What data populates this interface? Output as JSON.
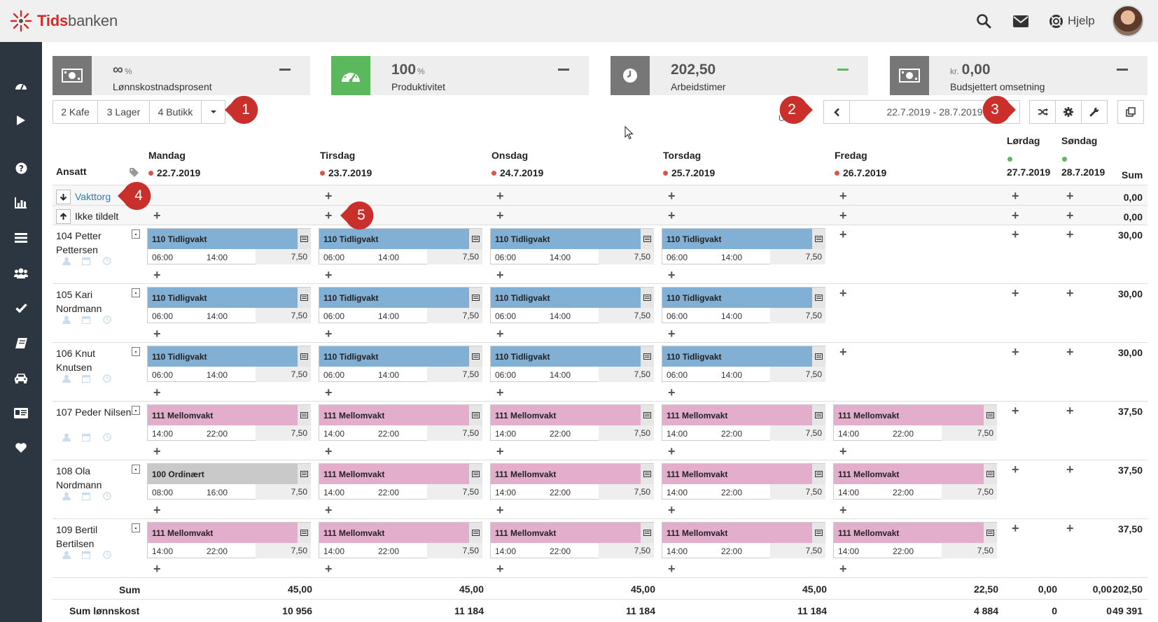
{
  "app": {
    "brand_a": "Tids",
    "brand_b": "banken"
  },
  "topbar": {
    "help_label": "Hjelp"
  },
  "sidebar": {
    "icons": [
      "dashboard-icon",
      "play-icon",
      "question-icon",
      "bar-chart-icon",
      "list-icon",
      "users-icon",
      "check-icon",
      "book-icon",
      "car-icon",
      "id-card-icon",
      "heart-icon"
    ]
  },
  "kpis": [
    {
      "value": "∞",
      "unit": "%",
      "prefix": "",
      "label": "Lønnskostnadsprosent",
      "icon": "money-icon",
      "icon_bg": "#777777",
      "dash_color": "#555555"
    },
    {
      "value": "100",
      "unit": "%",
      "prefix": "",
      "label": "Produktivitet",
      "icon": "speedometer-icon",
      "icon_bg": "#5cb85c",
      "dash_color": "#555555"
    },
    {
      "value": "202,50",
      "unit": "",
      "prefix": "",
      "label": "Arbeidstimer",
      "icon": "clock-icon",
      "icon_bg": "#777777",
      "dash_color": "#5cb85c"
    },
    {
      "value": "0,00",
      "unit": "",
      "prefix": "kr.",
      "label": "Budsjettert omsetning",
      "icon": "money-icon",
      "icon_bg": "#777777",
      "dash_color": "#555555"
    }
  ],
  "departments": [
    "2 Kafe",
    "3 Lager",
    "4 Butikk"
  ],
  "date_range": "22.7.2019 - 28.7.2019",
  "callouts": [
    "1",
    "2",
    "3",
    "4",
    "5"
  ],
  "header": {
    "employee_col": "Ansatt",
    "sum_col": "Sum",
    "fragment": "U"
  },
  "days": [
    {
      "name": "Mandag",
      "date": "22.7.2019",
      "dot": "#d9534f"
    },
    {
      "name": "Tirsdag",
      "date": "23.7.2019",
      "dot": "#d9534f"
    },
    {
      "name": "Onsdag",
      "date": "24.7.2019",
      "dot": "#d9534f"
    },
    {
      "name": "Torsdag",
      "date": "25.7.2019",
      "dot": "#d9534f"
    },
    {
      "name": "Fredag",
      "date": "26.7.2019",
      "dot": "#d9534f"
    },
    {
      "name": "Lørdag",
      "date": "27.7.2019",
      "dot": "#5cb85c"
    },
    {
      "name": "Søndag",
      "date": "28.7.2019",
      "dot": "#5cb85c"
    }
  ],
  "special_rows": [
    {
      "label": "Vakttorg",
      "sum": "0,00"
    },
    {
      "label": "Ikke tildelt",
      "sum": "0,00"
    }
  ],
  "employees": [
    {
      "name": "104 Petter Pettersen",
      "sum": "30,00",
      "shifts": [
        {
          "day": 0,
          "title": "110 Tidligvakt",
          "start": "06:00",
          "end": "14:00",
          "hours": "7,50",
          "kind": "tidlig"
        },
        {
          "day": 1,
          "title": "110 Tidligvakt",
          "start": "06:00",
          "end": "14:00",
          "hours": "7,50",
          "kind": "tidlig"
        },
        {
          "day": 2,
          "title": "110 Tidligvakt",
          "start": "06:00",
          "end": "14:00",
          "hours": "7,50",
          "kind": "tidlig"
        },
        {
          "day": 3,
          "title": "110 Tidligvakt",
          "start": "06:00",
          "end": "14:00",
          "hours": "7,50",
          "kind": "tidlig"
        }
      ]
    },
    {
      "name": "105 Kari Nordmann",
      "sum": "30,00",
      "shifts": [
        {
          "day": 0,
          "title": "110 Tidligvakt",
          "start": "06:00",
          "end": "14:00",
          "hours": "7,50",
          "kind": "tidlig"
        },
        {
          "day": 1,
          "title": "110 Tidligvakt",
          "start": "06:00",
          "end": "14:00",
          "hours": "7,50",
          "kind": "tidlig"
        },
        {
          "day": 2,
          "title": "110 Tidligvakt",
          "start": "06:00",
          "end": "14:00",
          "hours": "7,50",
          "kind": "tidlig"
        },
        {
          "day": 3,
          "title": "110 Tidligvakt",
          "start": "06:00",
          "end": "14:00",
          "hours": "7,50",
          "kind": "tidlig"
        }
      ]
    },
    {
      "name": "106 Knut Knutsen",
      "sum": "30,00",
      "shifts": [
        {
          "day": 0,
          "title": "110 Tidligvakt",
          "start": "06:00",
          "end": "14:00",
          "hours": "7,50",
          "kind": "tidlig"
        },
        {
          "day": 1,
          "title": "110 Tidligvakt",
          "start": "06:00",
          "end": "14:00",
          "hours": "7,50",
          "kind": "tidlig"
        },
        {
          "day": 2,
          "title": "110 Tidligvakt",
          "start": "06:00",
          "end": "14:00",
          "hours": "7,50",
          "kind": "tidlig"
        },
        {
          "day": 3,
          "title": "110 Tidligvakt",
          "start": "06:00",
          "end": "14:00",
          "hours": "7,50",
          "kind": "tidlig"
        }
      ]
    },
    {
      "name": "107 Peder Nilsen",
      "sum": "37,50",
      "shifts": [
        {
          "day": 0,
          "title": "111 Mellomvakt",
          "start": "14:00",
          "end": "22:00",
          "hours": "7,50",
          "kind": "mellom"
        },
        {
          "day": 1,
          "title": "111 Mellomvakt",
          "start": "14:00",
          "end": "22:00",
          "hours": "7,50",
          "kind": "mellom"
        },
        {
          "day": 2,
          "title": "111 Mellomvakt",
          "start": "14:00",
          "end": "22:00",
          "hours": "7,50",
          "kind": "mellom"
        },
        {
          "day": 3,
          "title": "111 Mellomvakt",
          "start": "14:00",
          "end": "22:00",
          "hours": "7,50",
          "kind": "mellom"
        },
        {
          "day": 4,
          "title": "111 Mellomvakt",
          "start": "14:00",
          "end": "22:00",
          "hours": "7,50",
          "kind": "mellom"
        }
      ]
    },
    {
      "name": "108 Ola Nordmann",
      "sum": "37,50",
      "shifts": [
        {
          "day": 0,
          "title": "100 Ordinært",
          "start": "08:00",
          "end": "16:00",
          "hours": "7,50",
          "kind": "ordinaer"
        },
        {
          "day": 1,
          "title": "111 Mellomvakt",
          "start": "14:00",
          "end": "22:00",
          "hours": "7,50",
          "kind": "mellom"
        },
        {
          "day": 2,
          "title": "111 Mellomvakt",
          "start": "14:00",
          "end": "22:00",
          "hours": "7,50",
          "kind": "mellom"
        },
        {
          "day": 3,
          "title": "111 Mellomvakt",
          "start": "14:00",
          "end": "22:00",
          "hours": "7,50",
          "kind": "mellom"
        },
        {
          "day": 4,
          "title": "111 Mellomvakt",
          "start": "14:00",
          "end": "22:00",
          "hours": "7,50",
          "kind": "mellom"
        }
      ]
    },
    {
      "name": "109 Bertil Bertilsen",
      "sum": "37,50",
      "shifts": [
        {
          "day": 0,
          "title": "111 Mellomvakt",
          "start": "14:00",
          "end": "22:00",
          "hours": "7,50",
          "kind": "mellom"
        },
        {
          "day": 1,
          "title": "111 Mellomvakt",
          "start": "14:00",
          "end": "22:00",
          "hours": "7,50",
          "kind": "mellom"
        },
        {
          "day": 2,
          "title": "111 Mellomvakt",
          "start": "14:00",
          "end": "22:00",
          "hours": "7,50",
          "kind": "mellom"
        },
        {
          "day": 3,
          "title": "111 Mellomvakt",
          "start": "14:00",
          "end": "22:00",
          "hours": "7,50",
          "kind": "mellom"
        },
        {
          "day": 4,
          "title": "111 Mellomvakt",
          "start": "14:00",
          "end": "22:00",
          "hours": "7,50",
          "kind": "mellom"
        }
      ]
    }
  ],
  "totals": {
    "sum_label": "Sum",
    "sum": [
      "45,00",
      "45,00",
      "45,00",
      "45,00",
      "22,50",
      "0,00",
      "0,00",
      "202,50"
    ],
    "cost_label": "Sum lønnskost",
    "cost": [
      "10 956",
      "11 184",
      "11 184",
      "11 184",
      "4 884",
      "0",
      "0",
      "49 391"
    ]
  },
  "colors": {
    "callout": "#c9302c",
    "link": "#2f78b9",
    "tidlig": "#82afd4",
    "mellom": "#e2aecb",
    "ordinaer": "#c9c9c9"
  }
}
